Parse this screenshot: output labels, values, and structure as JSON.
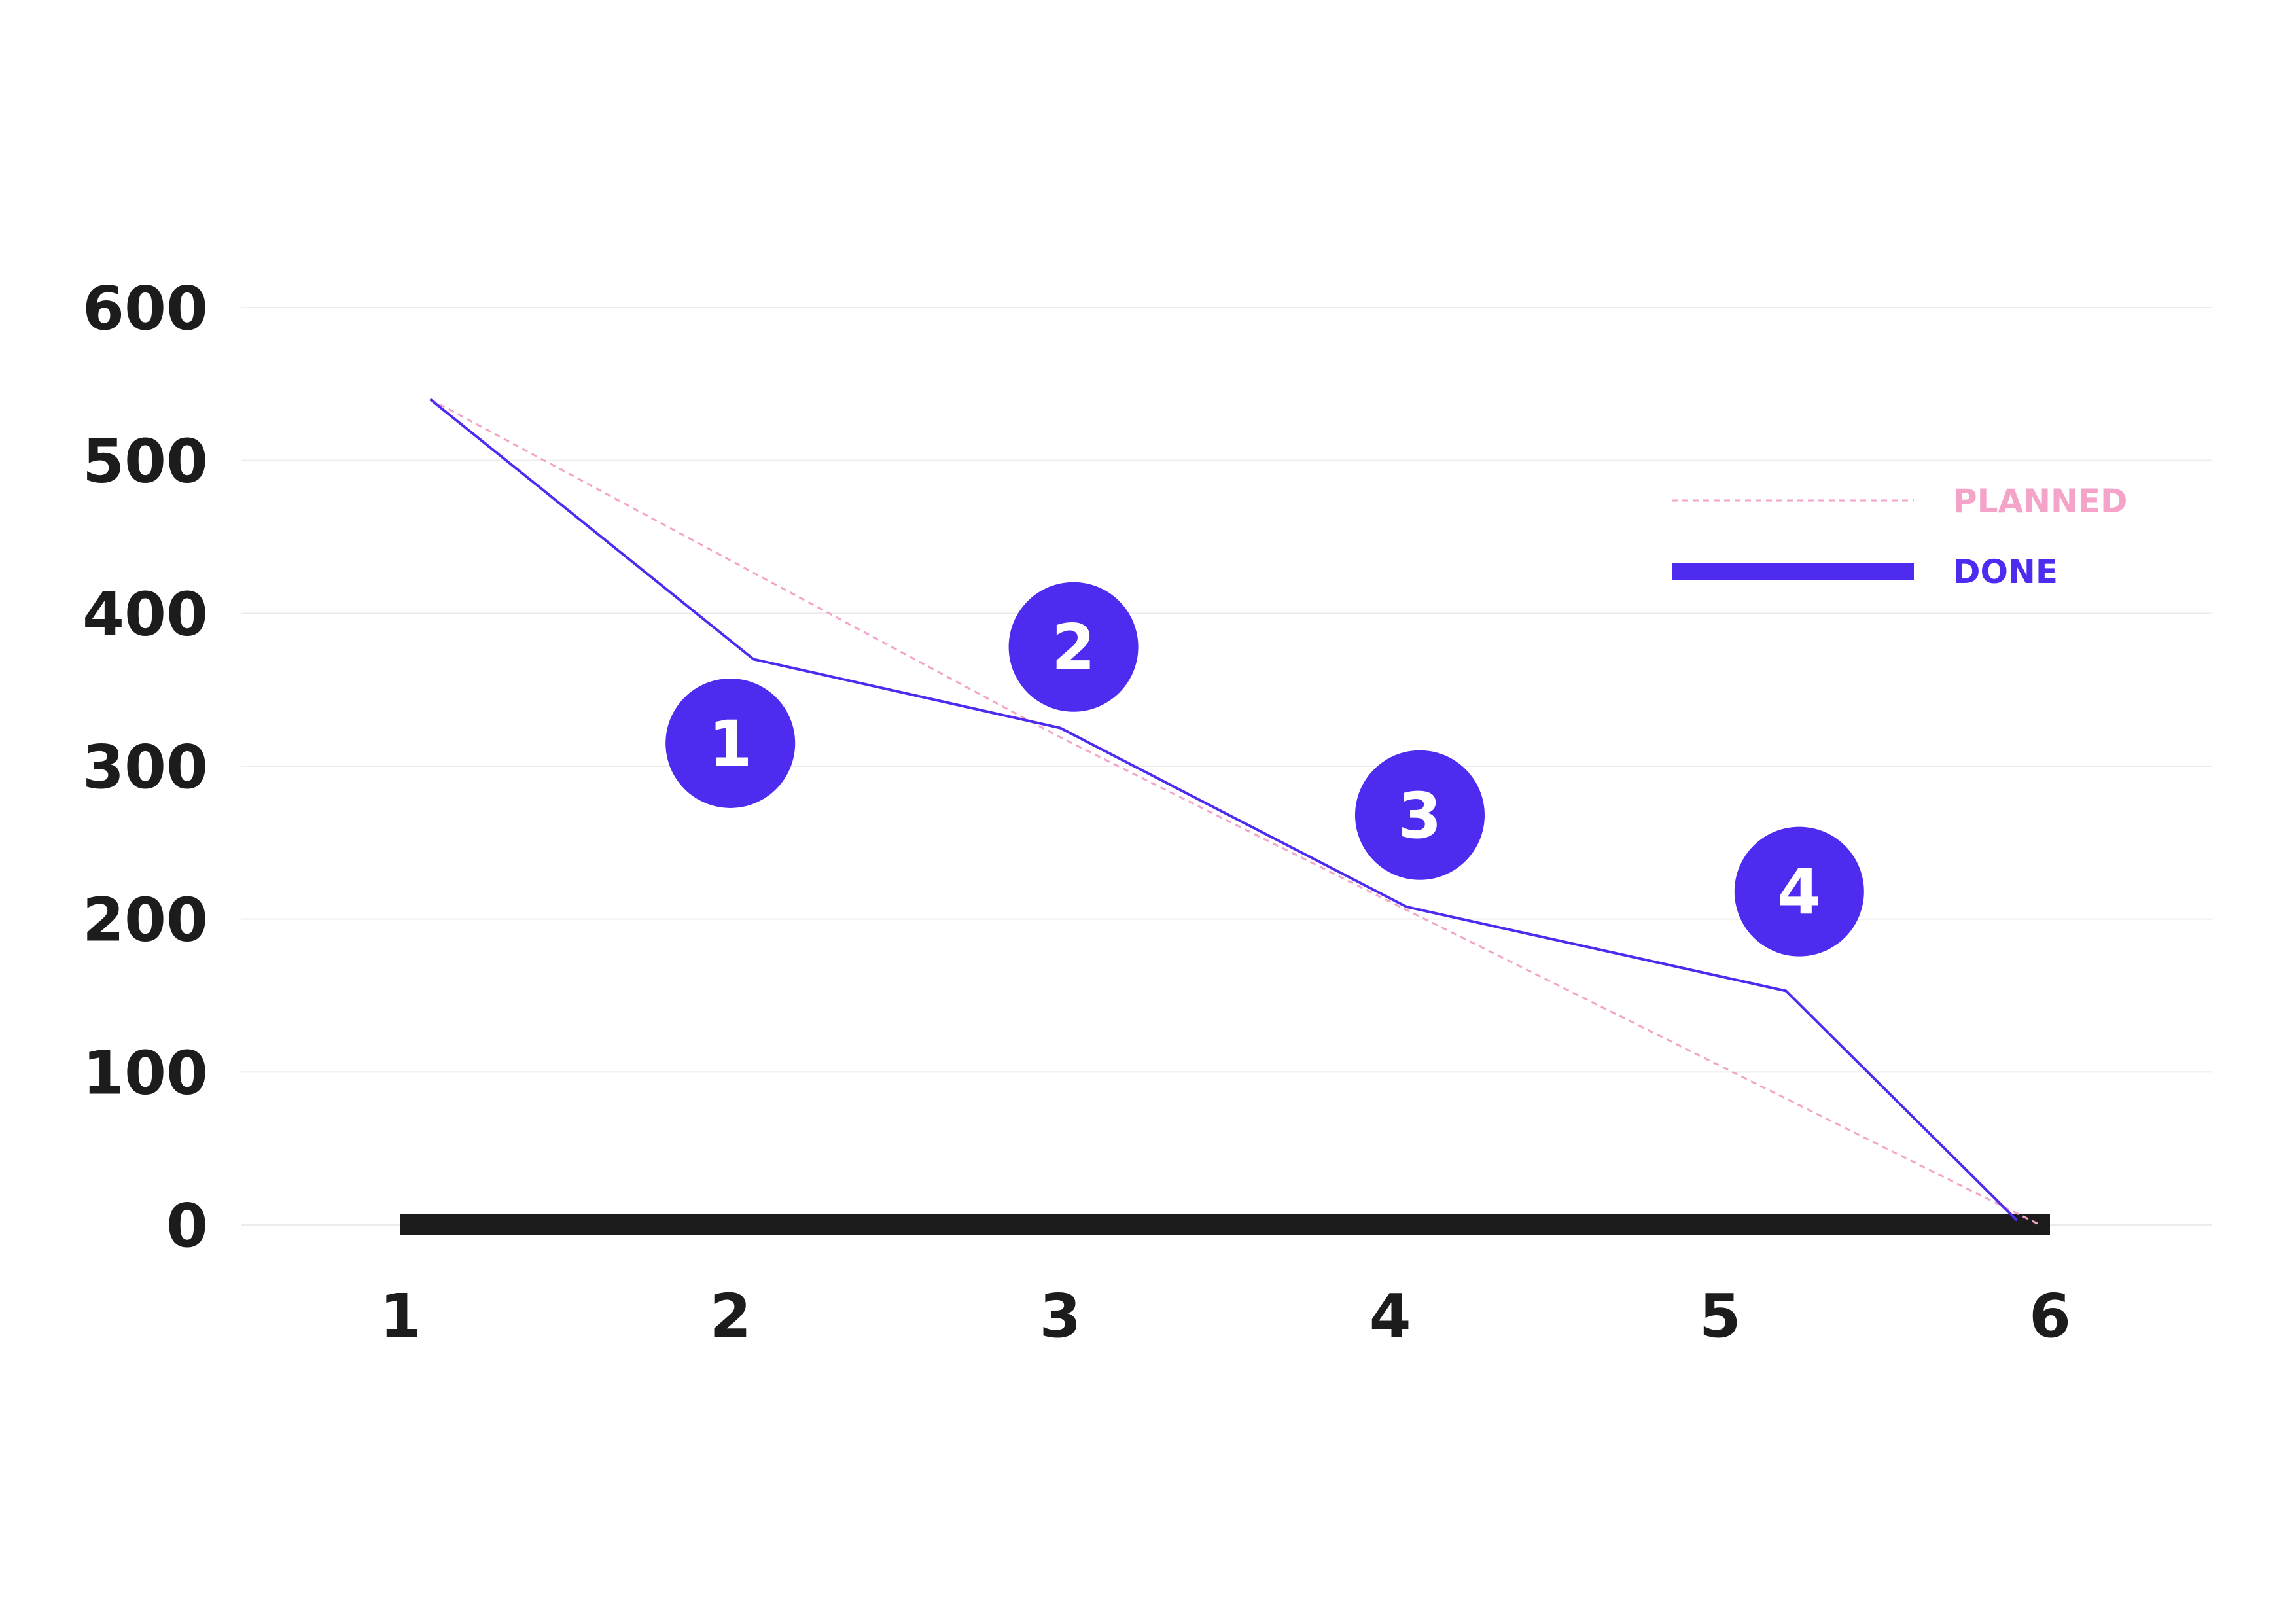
{
  "chart_data": {
    "type": "line",
    "x": [
      1,
      2,
      3,
      4,
      5,
      6
    ],
    "xlim": [
      1,
      6
    ],
    "ylim": [
      0,
      600
    ],
    "y_ticks": [
      0,
      100,
      200,
      300,
      400,
      500,
      600
    ],
    "x_ticks": [
      "1",
      "2",
      "3",
      "4",
      "5",
      "6"
    ],
    "grid": true,
    "legend_position": "top-right",
    "series": [
      {
        "name": "PLANNED",
        "color": "#f4a3c9",
        "style": "dashed",
        "points": [
          [
            1.09,
            540
          ],
          [
            2.99,
            320
          ],
          [
            4.04,
            207
          ],
          [
            5.97,
            0
          ]
        ]
      },
      {
        "name": "DONE",
        "color": "#4f2bf0",
        "style": "solid",
        "points": [
          [
            1.09,
            540
          ],
          [
            2.07,
            370
          ],
          [
            3.0,
            325
          ],
          [
            4.05,
            208
          ],
          [
            5.2,
            153
          ],
          [
            5.9,
            3
          ]
        ]
      }
    ],
    "markers": [
      {
        "label": "1",
        "x": 2.0,
        "y": 315
      },
      {
        "label": "2",
        "x": 3.04,
        "y": 378
      },
      {
        "label": "3",
        "x": 4.09,
        "y": 268
      },
      {
        "label": "4",
        "x": 5.24,
        "y": 218
      }
    ],
    "colors": {
      "axis": "#1c1c1c",
      "grid": "#ececec",
      "marker_fill": "#4f2bf0",
      "marker_text": "#ffffff"
    }
  }
}
